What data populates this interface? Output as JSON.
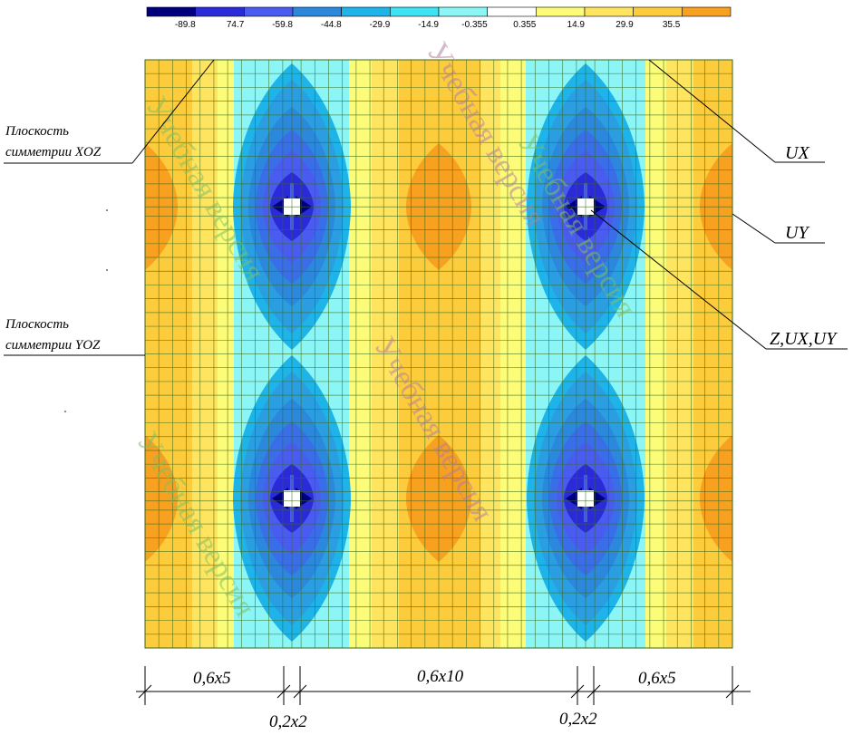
{
  "legend": {
    "colors": [
      "#00007f",
      "#2a2ad8",
      "#4a5cf0",
      "#2b88dd",
      "#1eb4ea",
      "#3ee2f2",
      "#8cf6f6",
      "#ffffff",
      "#fcfc78",
      "#ffe460",
      "#fccc3c",
      "#f8a020"
    ],
    "labels": [
      "-89.8",
      "74.7",
      "-59.8",
      "-44.8",
      "-29.9",
      "-14.9",
      "-0.355",
      "0.355",
      "14.9",
      "29.9",
      "35.5"
    ]
  },
  "callouts": {
    "xoz_line1": "Плоскость",
    "xoz_line2": "симметрии XOZ",
    "yoz_line1": "Плоскость",
    "yoz_line2": "симметрии YOZ",
    "ux": "UX",
    "uy": "UY",
    "zuxuy": "Z,UX,UY"
  },
  "dimensions": {
    "left": "0,6x5",
    "middle": "0,6x10",
    "right": "0,6x5",
    "small_left": "0,2x2",
    "small_right": "0,2x2"
  },
  "watermark": "Учебная версия"
}
